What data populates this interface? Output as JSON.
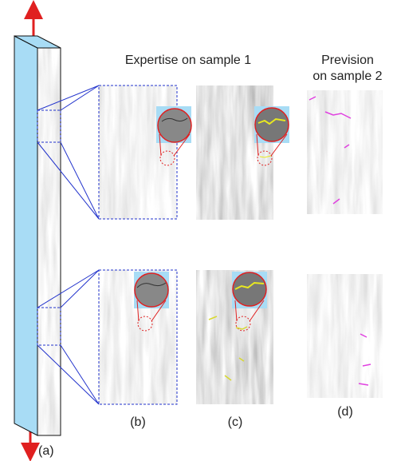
{
  "header": {
    "expertise_title": "Expertise on sample 1",
    "prevision_title": [
      "Prevision",
      "on sample 2"
    ]
  },
  "labels": {
    "a": "(a)",
    "b": "(b)",
    "c": "(c)",
    "d": "(d)"
  }
}
